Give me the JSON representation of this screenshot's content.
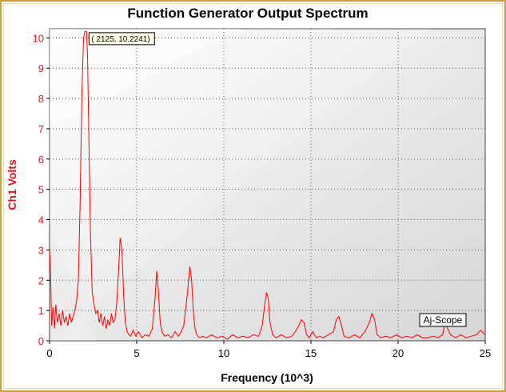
{
  "chart_data": {
    "type": "line",
    "title": "Function Generator Output Spectrum",
    "xlabel": "Frequency (10^3)",
    "ylabel": "Ch1 Volts",
    "xlim": [
      0,
      25
    ],
    "ylim": [
      0,
      10.3
    ],
    "xticks": [
      0,
      5,
      10,
      15,
      20,
      25
    ],
    "yticks": [
      0,
      1,
      2,
      3,
      4,
      5,
      6,
      7,
      8,
      9,
      10
    ],
    "grid": true,
    "colors": {
      "line": "#ff0000",
      "axis_text": "#e8101a",
      "frame": "#c9a040"
    },
    "series": [
      {
        "values": {
          "x": [
            0,
            0.06,
            0.12,
            0.2,
            0.28,
            0.36,
            0.45,
            0.55,
            0.65,
            0.75,
            0.85,
            0.95,
            1.05,
            1.15,
            1.25,
            1.35,
            1.45,
            1.55,
            1.65,
            1.75,
            1.85,
            1.95,
            2.02,
            2.07,
            2.125,
            2.18,
            2.25,
            2.35,
            2.45,
            2.55,
            2.65,
            2.75,
            2.85,
            2.95,
            3.05,
            3.15,
            3.25,
            3.35,
            3.45,
            3.55,
            3.65,
            3.75,
            3.85,
            3.95,
            4.05,
            4.15,
            4.25,
            4.35,
            4.45,
            4.55,
            4.65,
            4.8,
            4.95,
            5.1,
            5.3,
            5.5,
            5.7,
            5.9,
            6.05,
            6.15,
            6.25,
            6.35,
            6.45,
            6.6,
            6.8,
            7.0,
            7.2,
            7.4,
            7.55,
            7.7,
            7.8,
            7.9,
            8.05,
            8.15,
            8.25,
            8.35,
            8.45,
            8.6,
            8.8,
            9.0,
            9.3,
            9.6,
            9.9,
            10.2,
            10.5,
            10.8,
            11.1,
            11.4,
            11.7,
            12.0,
            12.2,
            12.35,
            12.45,
            12.55,
            12.65,
            12.8,
            13.0,
            13.3,
            13.6,
            13.9,
            14.1,
            14.3,
            14.45,
            14.6,
            14.75,
            14.9,
            15.1,
            15.3,
            15.5,
            15.7,
            16.0,
            16.3,
            16.45,
            16.6,
            16.75,
            16.9,
            17.2,
            17.5,
            17.8,
            18.1,
            18.35,
            18.5,
            18.65,
            18.8,
            19.0,
            19.3,
            19.6,
            19.9,
            20.2,
            20.5,
            20.8,
            21.1,
            21.4,
            21.7,
            22.0,
            22.3,
            22.55,
            22.7,
            22.85,
            23.0,
            23.3,
            23.6,
            23.9,
            24.2,
            24.5,
            24.75,
            24.9,
            25.0
          ],
          "y": [
            3.0,
            2.2,
            0.5,
            1.1,
            0.4,
            1.2,
            0.6,
            0.9,
            0.5,
            1.0,
            0.6,
            0.8,
            0.5,
            0.9,
            0.6,
            0.8,
            1.0,
            1.3,
            2.0,
            4.5,
            8.0,
            10.0,
            10.2,
            10.22,
            10.2,
            9.4,
            7.0,
            3.5,
            1.6,
            1.2,
            0.9,
            1.0,
            0.6,
            0.9,
            0.5,
            0.8,
            0.4,
            0.7,
            0.5,
            0.9,
            0.6,
            0.7,
            1.2,
            2.2,
            3.4,
            3.0,
            1.5,
            0.6,
            0.3,
            0.2,
            0.15,
            0.35,
            0.15,
            0.3,
            0.1,
            0.2,
            0.15,
            0.4,
            1.4,
            2.3,
            1.6,
            0.6,
            0.3,
            0.15,
            0.2,
            0.1,
            0.3,
            0.15,
            0.3,
            0.5,
            1.0,
            1.5,
            2.45,
            2.0,
            1.0,
            0.4,
            0.2,
            0.1,
            0.15,
            0.1,
            0.2,
            0.1,
            0.15,
            0.05,
            0.2,
            0.1,
            0.15,
            0.1,
            0.2,
            0.15,
            0.5,
            1.2,
            1.6,
            1.4,
            0.6,
            0.2,
            0.1,
            0.2,
            0.1,
            0.15,
            0.3,
            0.5,
            0.7,
            0.6,
            0.2,
            0.1,
            0.3,
            0.1,
            0.15,
            0.1,
            0.2,
            0.3,
            0.7,
            0.8,
            0.5,
            0.15,
            0.1,
            0.2,
            0.1,
            0.3,
            0.6,
            0.9,
            0.7,
            0.2,
            0.1,
            0.15,
            0.1,
            0.2,
            0.1,
            0.15,
            0.1,
            0.2,
            0.1,
            0.1,
            0.15,
            0.1,
            0.2,
            0.6,
            0.4,
            0.2,
            0.1,
            0.2,
            0.1,
            0.15,
            0.2,
            0.35,
            0.25,
            0.2
          ]
        }
      }
    ],
    "annotations": [
      {
        "text": "( 2125, 10.2241)",
        "x": 2.125,
        "y": 10.2241
      }
    ],
    "watermark": "Aj-Scope"
  }
}
